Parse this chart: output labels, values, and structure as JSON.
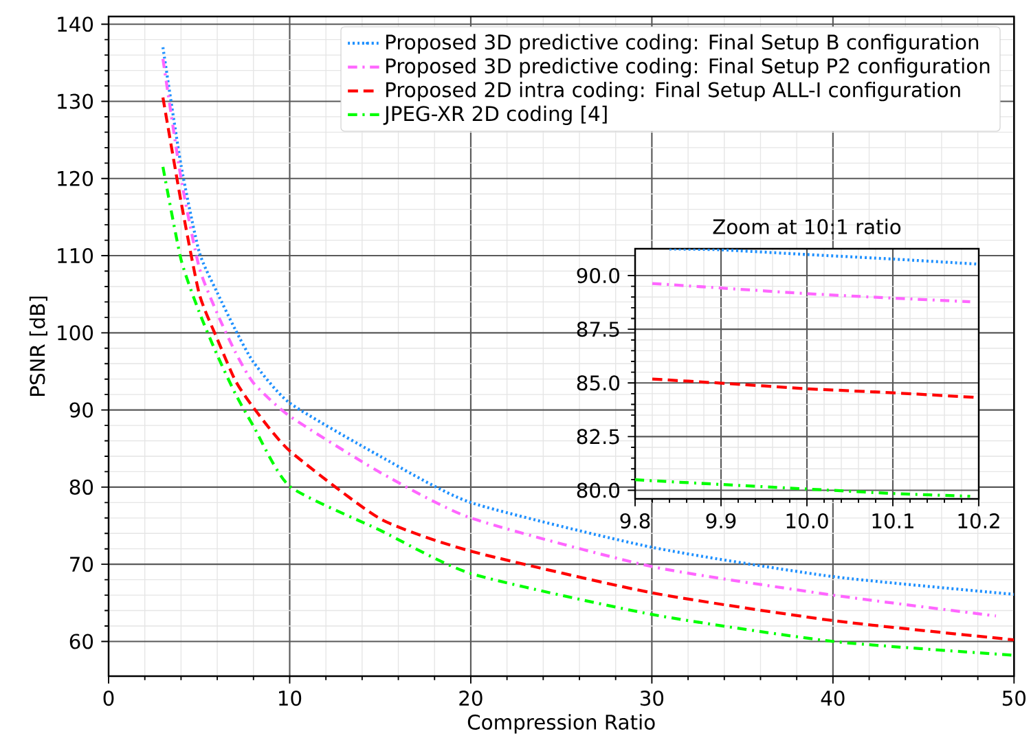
{
  "chart_data": [
    {
      "type": "line",
      "xlabel": "Compression Ratio",
      "ylabel": "PSNR [dB]",
      "xlim": [
        0,
        50
      ],
      "ylim": [
        55.5,
        141
      ],
      "xticks": [
        0,
        10,
        20,
        30,
        40,
        50
      ],
      "yticks": [
        60,
        70,
        80,
        90,
        100,
        110,
        120,
        130,
        140
      ],
      "grid": true,
      "legend": "top right",
      "series": [
        {
          "name": "Proposed 3D predictive coding: Final Setup B configuration",
          "color": "#1e90ff",
          "line_style": "dotted",
          "x": [
            3,
            4,
            5,
            6,
            7,
            8,
            10,
            15,
            20,
            30,
            40,
            50
          ],
          "values": [
            137,
            121.7,
            110.5,
            105.2,
            100.4,
            96.2,
            90.9,
            84.0,
            78.0,
            72.2,
            68.4,
            66.1
          ]
        },
        {
          "name": "Proposed 3D predictive coding: Final Setup P2 configuration",
          "color": "#ff66ff",
          "line_style": "dashdot",
          "x": [
            3,
            4,
            5,
            6,
            7,
            8,
            10,
            15,
            20,
            30,
            40,
            49
          ],
          "values": [
            135.5,
            120,
            108.5,
            102.5,
            97.5,
            93.5,
            89.2,
            81.9,
            76.0,
            69.7,
            66.0,
            63.3
          ]
        },
        {
          "name": "Proposed 2D intra coding: Final Setup ALL-I configuration",
          "color": "#ff0000",
          "line_style": "dashed",
          "x": [
            3,
            4,
            5,
            6,
            7,
            8,
            10,
            15,
            20,
            30,
            40,
            50
          ],
          "values": [
            130.5,
            117,
            105.1,
            99.2,
            93.8,
            90.3,
            84.7,
            75.9,
            71.7,
            66.3,
            62.7,
            60.2
          ]
        },
        {
          "name": "JPEG-XR 2D coding [4]",
          "color": "#00ff00",
          "line_style": "dashdot",
          "x": [
            3,
            4,
            5,
            6,
            7,
            8,
            10,
            15,
            20,
            30,
            40,
            50
          ],
          "values": [
            121.5,
            109.5,
            102.7,
            97.1,
            92.1,
            87.9,
            80.1,
            74.4,
            68.8,
            63.5,
            60.0,
            58.2
          ]
        }
      ]
    },
    {
      "type": "line",
      "title": "Zoom at 10:1 ratio",
      "xlim": [
        9.8,
        10.2
      ],
      "ylim": [
        79.6,
        91.25
      ],
      "grid": true,
      "xticks": [
        9.8,
        9.9,
        {
          "value": 10,
          "label": "10.0"
        },
        10.1,
        10.2
      ],
      "yticks": [
        {
          "value": 80,
          "label": "80.0"
        },
        82.5,
        {
          "value": 85,
          "label": "85.0"
        },
        87.5,
        {
          "value": 90,
          "label": "90.0"
        }
      ],
      "series": [
        {
          "color": "#1e90ff",
          "line_style": "dotted",
          "x": [
            9.84,
            9.9,
            10.0,
            10.1,
            10.2
          ],
          "values": [
            91.24,
            91.2,
            90.98,
            90.77,
            90.53
          ]
        },
        {
          "color": "#ff66ff",
          "line_style": "dashdot",
          "x": [
            9.82,
            9.9,
            10.0,
            10.1,
            10.19
          ],
          "values": [
            89.63,
            89.42,
            89.16,
            88.95,
            88.78
          ]
        },
        {
          "color": "#ff0000",
          "line_style": "dashed",
          "x": [
            9.82,
            9.9,
            10.0,
            10.1,
            10.2
          ],
          "values": [
            85.18,
            84.99,
            84.73,
            84.54,
            84.32
          ]
        },
        {
          "color": "#00ff00",
          "line_style": "dashdot",
          "x": [
            9.8,
            9.9,
            10.0,
            10.1,
            10.19
          ],
          "values": [
            80.49,
            80.27,
            80.06,
            79.85,
            79.72
          ]
        }
      ]
    }
  ]
}
